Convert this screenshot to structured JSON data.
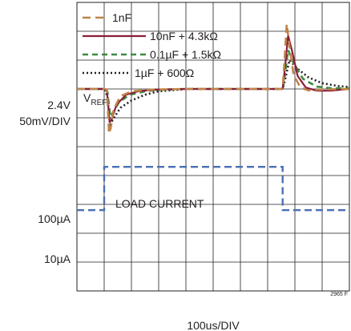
{
  "chart_data": {
    "type": "line",
    "x_divisions": 10,
    "y_divisions": 10,
    "x_scale": "100us/DIV",
    "figure_id": "2965 F",
    "grid": true,
    "legend_placement": "top-left",
    "upper_trace": {
      "ref_level_text": "2.4V",
      "scale_text": "50mV/DIV",
      "channel_label": "V",
      "channel_sub": "REF",
      "baseline_div": 3.0,
      "series": [
        {
          "name": "1nF",
          "color": "#c0834a",
          "dash": "10,6",
          "width": 2.6,
          "points": [
            [
              0,
              3.0
            ],
            [
              1.0,
              3.0
            ],
            [
              1.1,
              3.02
            ],
            [
              1.18,
              4.55
            ],
            [
              1.24,
              4.35
            ],
            [
              1.35,
              3.7
            ],
            [
              1.6,
              3.25
            ],
            [
              2.0,
              3.08
            ],
            [
              2.8,
              3.02
            ],
            [
              4.0,
              3.0
            ],
            [
              7.55,
              3.0
            ],
            [
              7.6,
              2.3
            ],
            [
              7.7,
              0.75
            ],
            [
              7.8,
              1.5
            ],
            [
              7.95,
              2.5
            ],
            [
              8.2,
              2.95
            ],
            [
              8.5,
              3.05
            ],
            [
              9.0,
              3.02
            ],
            [
              10,
              3.0
            ]
          ]
        },
        {
          "name": "10nF + 4.3kΩ",
          "color": "#8c1c3a",
          "dash": "",
          "width": 2.2,
          "points": [
            [
              0,
              3.0
            ],
            [
              1.0,
              3.0
            ],
            [
              1.1,
              3.05
            ],
            [
              1.2,
              4.15
            ],
            [
              1.28,
              4.05
            ],
            [
              1.45,
              3.55
            ],
            [
              1.8,
              3.2
            ],
            [
              2.3,
              3.07
            ],
            [
              3.0,
              3.02
            ],
            [
              4.0,
              3.0
            ],
            [
              7.55,
              3.0
            ],
            [
              7.62,
              2.4
            ],
            [
              7.75,
              1.15
            ],
            [
              7.9,
              1.7
            ],
            [
              8.1,
              2.55
            ],
            [
              8.4,
              2.95
            ],
            [
              8.8,
              3.06
            ],
            [
              9.3,
              3.06
            ],
            [
              10,
              3.0
            ]
          ]
        },
        {
          "name": "0.1µF + 1.5kΩ",
          "color": "#3d8a3f",
          "dash": "7,5",
          "width": 2.6,
          "points": [
            [
              0,
              3.0
            ],
            [
              1.0,
              3.0
            ],
            [
              1.12,
              3.1
            ],
            [
              1.22,
              3.95
            ],
            [
              1.3,
              3.85
            ],
            [
              1.55,
              3.45
            ],
            [
              1.95,
              3.2
            ],
            [
              2.6,
              3.06
            ],
            [
              3.5,
              3.01
            ],
            [
              4.0,
              3.0
            ],
            [
              7.55,
              3.0
            ],
            [
              7.62,
              2.6
            ],
            [
              7.75,
              1.65
            ],
            [
              7.95,
              2.1
            ],
            [
              8.3,
              2.65
            ],
            [
              8.8,
              2.92
            ],
            [
              9.4,
              2.98
            ],
            [
              10,
              2.97
            ]
          ]
        },
        {
          "name": "1µF + 600Ω",
          "color": "#231f20",
          "dash": "2,3",
          "width": 2.6,
          "points": [
            [
              0,
              3.0
            ],
            [
              1.0,
              3.0
            ],
            [
              1.12,
              3.25
            ],
            [
              1.22,
              4.25
            ],
            [
              1.32,
              4.05
            ],
            [
              1.6,
              3.65
            ],
            [
              2.0,
              3.4
            ],
            [
              2.5,
              3.2
            ],
            [
              3.0,
              3.08
            ],
            [
              3.8,
              3.02
            ],
            [
              4.0,
              3.0
            ],
            [
              7.55,
              3.0
            ],
            [
              7.62,
              2.75
            ],
            [
              7.8,
              2.0
            ],
            [
              8.1,
              2.3
            ],
            [
              8.5,
              2.6
            ],
            [
              9.0,
              2.8
            ],
            [
              9.6,
              2.9
            ],
            [
              10,
              2.93
            ]
          ]
        }
      ]
    },
    "load_current": {
      "title": "LOAD CURRENT",
      "levels": [
        "100µA",
        "10µA"
      ],
      "color": "#4a6fb6",
      "points": [
        [
          0,
          7.2
        ],
        [
          1.0,
          7.2
        ],
        [
          1.0,
          5.7
        ],
        [
          7.55,
          5.7
        ],
        [
          7.55,
          7.2
        ],
        [
          10,
          7.2
        ]
      ]
    }
  }
}
